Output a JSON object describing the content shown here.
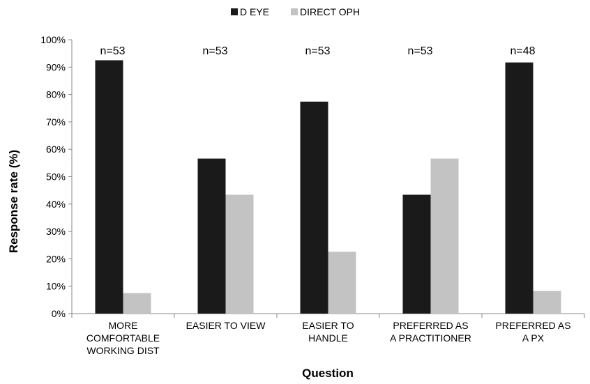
{
  "chart_data": {
    "type": "bar",
    "xlabel": "Question",
    "ylabel": "Response rate (%)",
    "ylim": [
      0,
      100
    ],
    "yticks": [
      "0%",
      "10%",
      "20%",
      "30%",
      "40%",
      "50%",
      "60%",
      "70%",
      "80%",
      "90%",
      "100%"
    ],
    "grid": false,
    "legend_position": "top-center",
    "categories": [
      [
        "MORE",
        "COMFORTABLE",
        "WORKING DIST"
      ],
      [
        "EASIER TO VIEW"
      ],
      [
        "EASIER TO",
        "HANDLE"
      ],
      [
        "PREFERRED AS",
        "A PRACTITIONER"
      ],
      [
        "PREFERRED AS",
        "A PX"
      ]
    ],
    "n_labels": [
      "n=53",
      "n=53",
      "n=53",
      "n=53",
      "n=48"
    ],
    "series": [
      {
        "name": "D EYE",
        "color": "#1a1a1a",
        "values": [
          92.5,
          56.6,
          77.4,
          43.4,
          91.7
        ]
      },
      {
        "name": "DIRECT OPH",
        "color": "#c3c3c3",
        "values": [
          7.5,
          43.4,
          22.6,
          56.6,
          8.3
        ]
      }
    ]
  }
}
